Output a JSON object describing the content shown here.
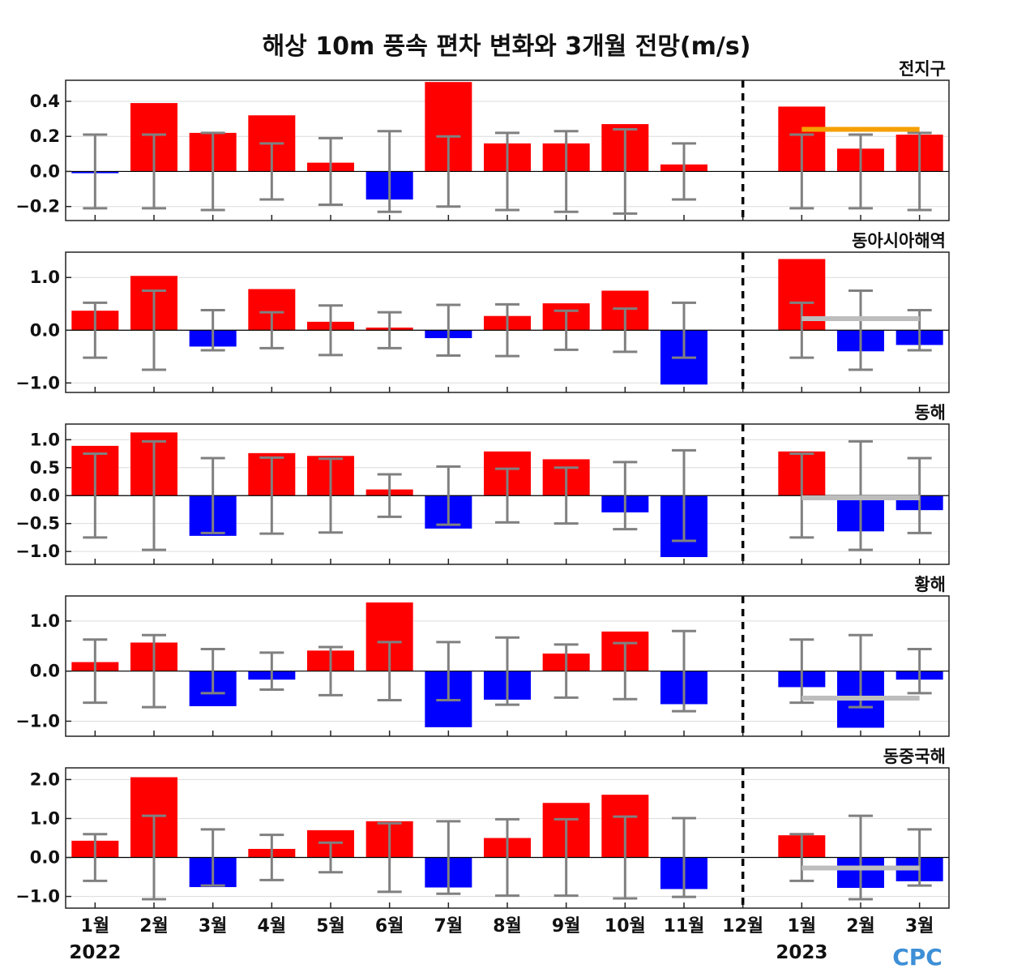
{
  "chart_data": {
    "type": "bar",
    "title": "해상 10m 풍속 편차 변화와 3개월 전망(m/s)",
    "categories": [
      "1월",
      "2월",
      "3월",
      "4월",
      "5월",
      "6월",
      "7월",
      "8월",
      "9월",
      "10월",
      "11월",
      "12월",
      "1월",
      "2월",
      "3월"
    ],
    "years": [
      {
        "label": "2022",
        "category_index": 0
      },
      {
        "label": "2023",
        "category_index": 12
      }
    ],
    "forecast_start_index": 12,
    "logo": "CPC",
    "colors": {
      "positive": "#ff0000",
      "negative": "#0000ff",
      "errorbar": "#808080",
      "forecast_line_global": "#f5a000",
      "forecast_line": "#bdbdbd"
    },
    "panels": [
      {
        "name": "전지구",
        "ylim": [
          -0.28,
          0.52
        ],
        "yticks": [
          0.4,
          0.2,
          0.0,
          -0.2
        ],
        "ytick_labels": [
          "0.4",
          "0.2",
          "0.0",
          "−0.2"
        ],
        "values": [
          -0.01,
          0.39,
          0.22,
          0.32,
          0.05,
          -0.16,
          0.51,
          0.16,
          0.16,
          0.27,
          0.04,
          0.0,
          0.37,
          0.13,
          0.21
        ],
        "error": [
          0.21,
          0.21,
          0.22,
          0.16,
          0.19,
          0.23,
          0.2,
          0.22,
          0.23,
          0.24,
          0.16,
          0.0,
          0.21,
          0.21,
          0.22
        ],
        "forecast_mean": 0.24,
        "forecast_color": "#f5a000"
      },
      {
        "name": "동아시아해역",
        "ylim": [
          -1.18,
          1.48
        ],
        "yticks": [
          1.0,
          0.0,
          -1.0
        ],
        "ytick_labels": [
          "1.0",
          "0.0",
          "−1.0"
        ],
        "values": [
          0.37,
          1.03,
          -0.31,
          0.78,
          0.16,
          0.05,
          -0.15,
          0.27,
          0.51,
          0.75,
          -1.03,
          0.0,
          1.35,
          -0.4,
          -0.28
        ],
        "error": [
          0.52,
          0.75,
          0.38,
          0.34,
          0.47,
          0.34,
          0.48,
          0.49,
          0.37,
          0.41,
          0.52,
          0.0,
          0.52,
          0.75,
          0.38
        ],
        "forecast_mean": 0.22,
        "forecast_color": "#bdbdbd"
      },
      {
        "name": "동해",
        "ylim": [
          -1.23,
          1.28
        ],
        "yticks": [
          1.0,
          0.5,
          0.0,
          -0.5,
          -1.0
        ],
        "ytick_labels": [
          "1.0",
          "0.5",
          "0.0",
          "−0.5",
          "−1.0"
        ],
        "values": [
          0.89,
          1.13,
          -0.72,
          0.76,
          0.71,
          0.11,
          -0.59,
          0.79,
          0.65,
          -0.3,
          -1.1,
          0.0,
          0.79,
          -0.64,
          -0.26
        ],
        "error": [
          0.75,
          0.97,
          0.67,
          0.68,
          0.66,
          0.38,
          0.52,
          0.48,
          0.5,
          0.6,
          0.81,
          0.0,
          0.75,
          0.97,
          0.67
        ],
        "forecast_mean": -0.04,
        "forecast_color": "#bdbdbd"
      },
      {
        "name": "황해",
        "ylim": [
          -1.3,
          1.5
        ],
        "yticks": [
          1.0,
          0.0,
          -1.0
        ],
        "ytick_labels": [
          "1.0",
          "0.0",
          "−1.0"
        ],
        "values": [
          0.18,
          0.57,
          -0.7,
          -0.17,
          0.41,
          1.37,
          -1.12,
          -0.57,
          0.35,
          0.79,
          -0.66,
          0.0,
          -0.32,
          -1.13,
          -0.17
        ],
        "error": [
          0.63,
          0.72,
          0.44,
          0.37,
          0.48,
          0.58,
          0.58,
          0.67,
          0.53,
          0.56,
          0.8,
          0.0,
          0.63,
          0.72,
          0.44
        ],
        "forecast_mean": -0.54,
        "forecast_color": "#bdbdbd"
      },
      {
        "name": "동중국해",
        "ylim": [
          -1.3,
          2.3
        ],
        "yticks": [
          2.0,
          1.0,
          0.0,
          -1.0
        ],
        "ytick_labels": [
          "2.0",
          "1.0",
          "0.0",
          "−1.0"
        ],
        "values": [
          0.43,
          2.06,
          -0.76,
          0.22,
          0.7,
          0.93,
          -0.77,
          0.5,
          1.4,
          1.61,
          -0.81,
          0.0,
          0.57,
          -0.78,
          -0.61
        ],
        "error": [
          0.6,
          1.07,
          0.72,
          0.58,
          0.38,
          0.88,
          0.93,
          0.98,
          0.98,
          1.05,
          1.01,
          0.0,
          0.6,
          1.07,
          0.72
        ],
        "forecast_mean": -0.27,
        "forecast_color": "#bdbdbd"
      }
    ]
  }
}
